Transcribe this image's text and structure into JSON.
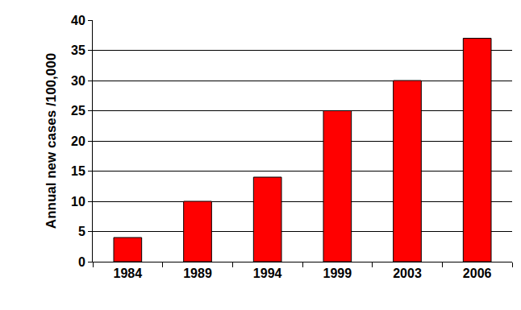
{
  "chart_data": {
    "type": "bar",
    "y_label": "Annual new cases /100,000",
    "categories": [
      "1984",
      "1989",
      "1994",
      "1999",
      "2003",
      "2006"
    ],
    "values": [
      4,
      10,
      14,
      25,
      30,
      37
    ],
    "color": "#ff0000",
    "ylim": [
      0,
      40
    ],
    "yticks": [
      0,
      5,
      10,
      15,
      20,
      25,
      30,
      35,
      40
    ],
    "grid": true
  }
}
